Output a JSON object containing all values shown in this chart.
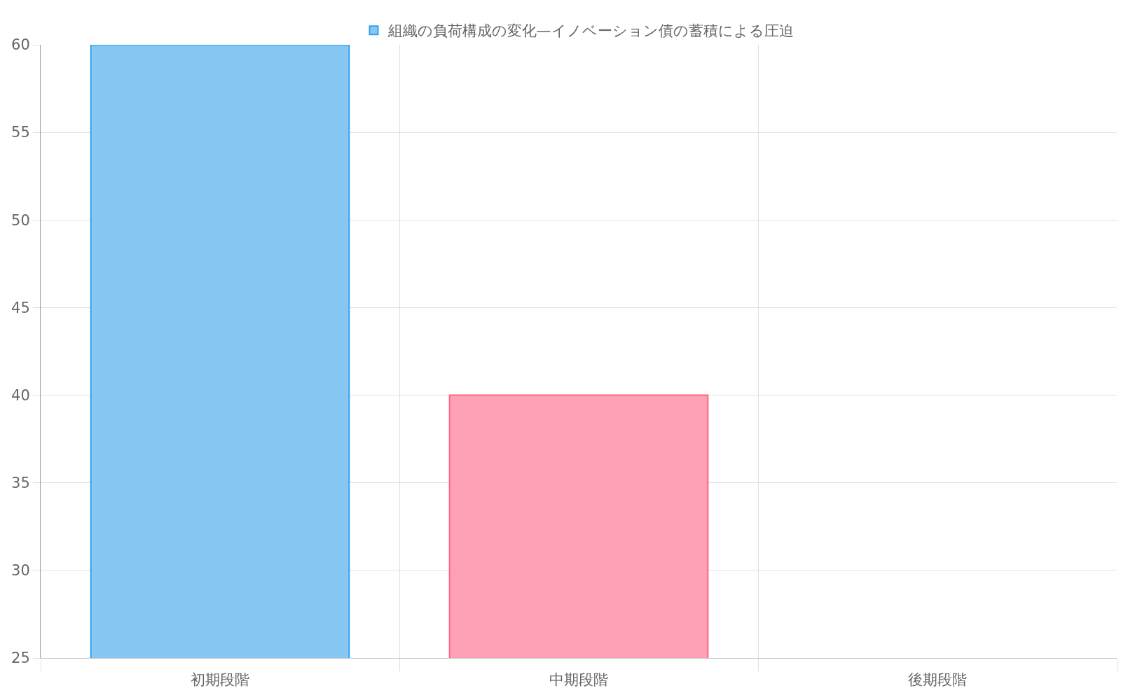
{
  "chart_data": {
    "type": "bar",
    "categories": [
      "初期段階",
      "中期段階",
      "後期段階"
    ],
    "series": [
      {
        "name": "組織の負荷構成の変化—イノベーション債の蓄積による圧迫",
        "colors": [
          "#86c7f3",
          "#ffa1b5",
          "#86c7f3"
        ],
        "values": [
          60,
          40,
          null
        ]
      }
    ],
    "ylim": [
      25,
      60
    ],
    "yticks": [
      25,
      30,
      35,
      40,
      45,
      50,
      55,
      60
    ],
    "grid": true,
    "legend": "top"
  }
}
